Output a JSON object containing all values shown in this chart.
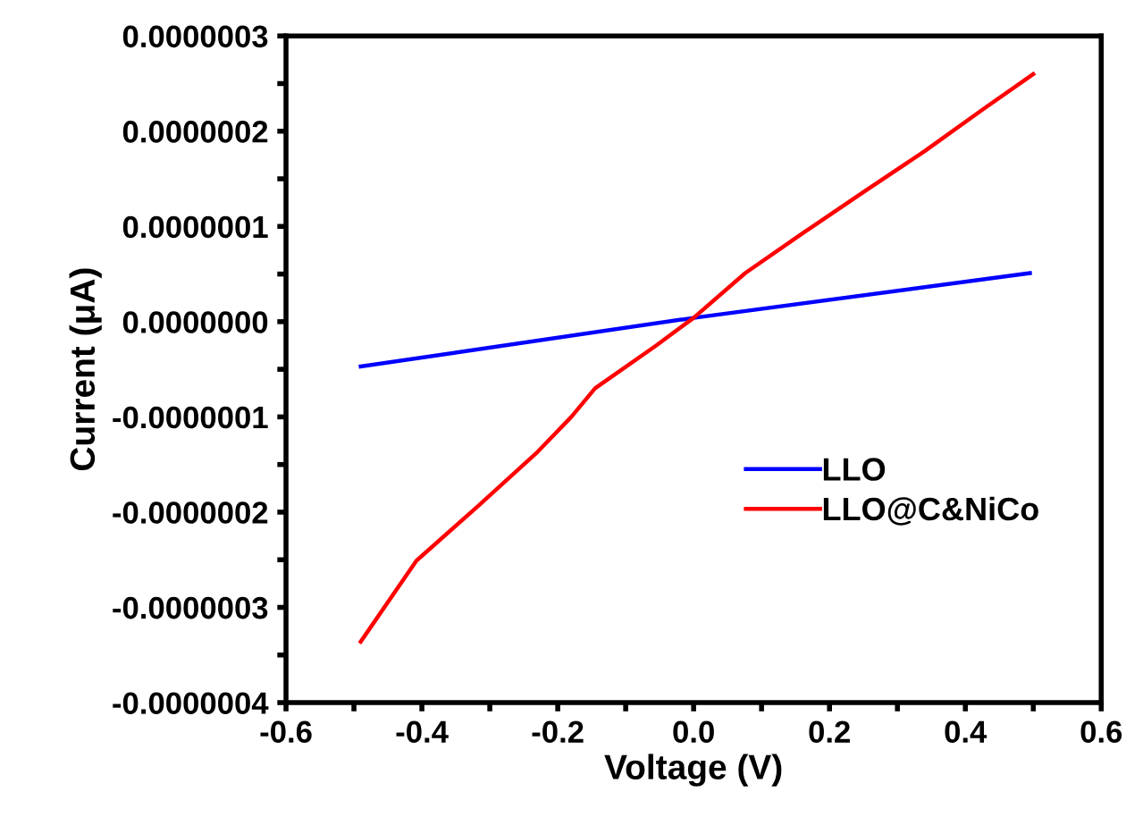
{
  "chart_data": {
    "type": "line",
    "xlabel": "Voltage (V)",
    "ylabel": "Current (μA)",
    "xlim": [
      -0.6,
      0.6
    ],
    "ylim": [
      -4e-07,
      3e-07
    ],
    "xticks": [
      -0.6,
      {
        "value": -0.5,
        "label": null
      },
      -0.4,
      {
        "value": -0.3,
        "label": null
      },
      -0.2,
      {
        "value": -0.1,
        "label": null
      },
      {
        "value": 0,
        "label": "0.0"
      },
      {
        "value": 0.1,
        "label": null
      },
      0.2,
      {
        "value": 0.3,
        "label": null
      },
      0.4,
      {
        "value": 0.5,
        "label": null
      },
      0.6
    ],
    "yticks": [
      {
        "value": -4e-07,
        "label": "-0.0000004"
      },
      {
        "value": -3.5e-07,
        "label": null
      },
      {
        "value": -3e-07,
        "label": "-0.0000003"
      },
      {
        "value": -2.5e-07,
        "label": null
      },
      {
        "value": -2e-07,
        "label": "-0.0000002"
      },
      {
        "value": -1.5e-07,
        "label": null
      },
      {
        "value": -1e-07,
        "label": "-0.0000001"
      },
      {
        "value": -5e-08,
        "label": null
      },
      {
        "value": 0,
        "label": "0.0000000"
      },
      {
        "value": 5e-08,
        "label": null
      },
      {
        "value": 1e-07,
        "label": "0.0000001"
      },
      {
        "value": 1.5e-07,
        "label": null
      },
      {
        "value": 2e-07,
        "label": "0.0000002"
      },
      {
        "value": 2.5e-07,
        "label": null
      },
      {
        "value": 3e-07,
        "label": "0.0000003"
      }
    ],
    "grid": false,
    "legend": "bottom right",
    "marker": "none",
    "line_style": "solid",
    "series": [
      {
        "name": "LLO",
        "color": "#0000ff",
        "x": [
          -0.49,
          0.0,
          0.495
        ],
        "values": [
          -4.7e-08,
          4e-09,
          5.1e-08
        ]
      },
      {
        "name": "LLO@C&NiCo",
        "color": "#ff0000",
        "x": [
          -0.49,
          -0.408,
          -0.318,
          -0.23,
          -0.18,
          -0.145,
          -0.055,
          0.0,
          0.076,
          0.163,
          0.25,
          0.34,
          0.426,
          0.5
        ],
        "values": [
          -3.36e-07,
          -2.51e-07,
          -1.94e-07,
          -1.37e-07,
          -1e-07,
          -7e-08,
          -2.5e-08,
          4e-09,
          5.1e-08,
          9.4e-08,
          1.36e-07,
          1.79e-07,
          2.23e-07,
          2.6e-07
        ]
      }
    ]
  }
}
